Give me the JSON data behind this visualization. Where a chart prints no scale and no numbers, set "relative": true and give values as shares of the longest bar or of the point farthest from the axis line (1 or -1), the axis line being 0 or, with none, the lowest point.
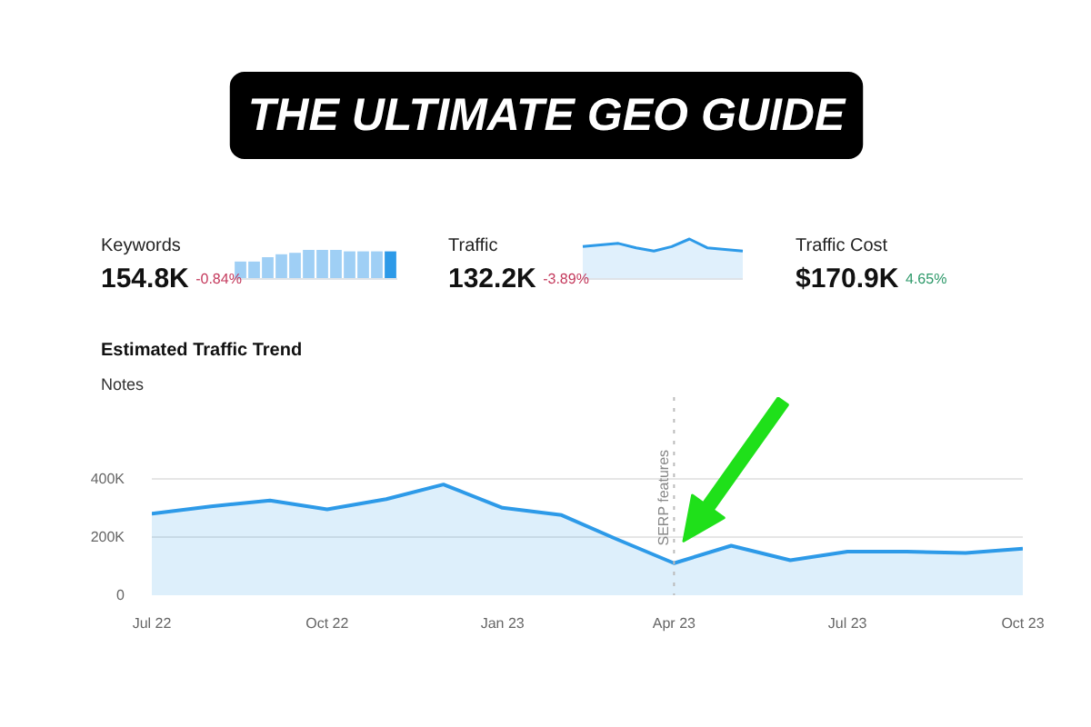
{
  "chart_data": [
    {
      "type": "other",
      "title": "THE ULTIMATE GEO GUIDE"
    },
    {
      "type": "bar",
      "relative": true,
      "title": "Keywords",
      "annotations": [
        "154.8K",
        "-0.84%"
      ],
      "categories": [
        null,
        null,
        null,
        null,
        null,
        null,
        null,
        null,
        null,
        null,
        null,
        null
      ],
      "values": [
        0.6,
        0.6,
        0.75,
        0.85,
        0.9,
        1,
        1,
        1,
        0.95,
        0.95,
        0.95,
        0.95
      ],
      "colors": [
        "#9fcff5",
        "#9fcff5",
        "#9fcff5",
        "#9fcff5",
        "#9fcff5",
        "#9fcff5",
        "#9fcff5",
        "#9fcff5",
        "#9fcff5",
        "#9fcff5",
        "#9fcff5",
        "#2d9ae8"
      ]
    },
    {
      "type": "area",
      "relative": true,
      "title": "Traffic",
      "annotations": [
        "132.2K",
        "-3.89%"
      ],
      "categories": [
        null,
        null,
        null,
        null,
        null,
        null,
        null,
        null,
        null,
        null
      ],
      "values": [
        0.81,
        0.85,
        0.89,
        0.78,
        0.7,
        0.81,
        1,
        0.78,
        0.74,
        0.7
      ],
      "color": "#2d9ae8"
    },
    {
      "type": "other",
      "title": "Traffic Cost",
      "annotations": [
        "$170.9K",
        "4.65%"
      ]
    },
    {
      "type": "area",
      "title": "Estimated Traffic Trend",
      "annotations": [
        "Notes"
      ],
      "x": [
        "2022-07",
        "2022-08",
        "2022-09",
        "2022-10",
        "2022-11",
        "2022-12",
        "2023-01",
        "2023-02",
        "2023-03",
        "2023-04",
        "2023-05",
        "2023-06",
        "2023-07",
        "2023-08",
        "2023-09",
        "2023-10"
      ],
      "values": [
        280000,
        305000,
        325000,
        295000,
        330000,
        380000,
        300000,
        275000,
        195000,
        110000,
        170000,
        120000,
        150000,
        150000,
        145000,
        160000
      ],
      "color": "#2d9ae8",
      "xlim": [
        "2022-07",
        "2023-10"
      ],
      "xticks": [
        {
          "value": "2022-07",
          "label": "Jul 22"
        },
        {
          "value": "2022-10",
          "label": "Oct 22"
        },
        {
          "value": "2023-01",
          "label": "Jan 23"
        },
        {
          "value": "2023-04",
          "label": "Apr 23"
        },
        {
          "value": "2023-07",
          "label": "Jul 23"
        },
        {
          "value": "2023-10",
          "label": "Oct 23"
        }
      ],
      "ylim": [
        0,
        680000
      ],
      "yticks": [
        0,
        {
          "value": 200000,
          "label": "200K"
        },
        {
          "value": 400000,
          "label": "400K"
        }
      ],
      "grid": "y",
      "ref_lines": [
        {
          "axis": "x",
          "value": "2023-04",
          "label": "SERP features",
          "color": "#bbbbbb",
          "line_style": "dotted"
        }
      ]
    }
  ]
}
